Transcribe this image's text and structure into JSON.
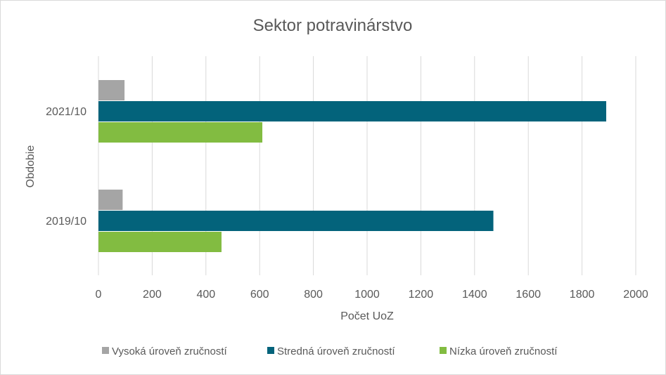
{
  "chart_data": {
    "type": "bar",
    "orientation": "horizontal",
    "title": "Sektor potravinárstvo",
    "xlabel": "Počet UoZ",
    "ylabel": "Obdobie",
    "categories": [
      "2021/10",
      "2019/10"
    ],
    "xlim": [
      0,
      2000
    ],
    "xticks": [
      "0",
      "200",
      "400",
      "600",
      "800",
      "1000",
      "1200",
      "1400",
      "1600",
      "1800",
      "2000"
    ],
    "grid": true,
    "legend_position": "bottom",
    "series": [
      {
        "name": "Vysoká úroveň zručností",
        "color": "#a5a5a5",
        "values": [
          97,
          90
        ]
      },
      {
        "name": "Stredná úroveň zručností",
        "color": "#03637b",
        "values": [
          1890,
          1470
        ]
      },
      {
        "name": "Nízka úroveň zručností",
        "color": "#82bc41",
        "values": [
          610,
          458
        ]
      }
    ]
  }
}
